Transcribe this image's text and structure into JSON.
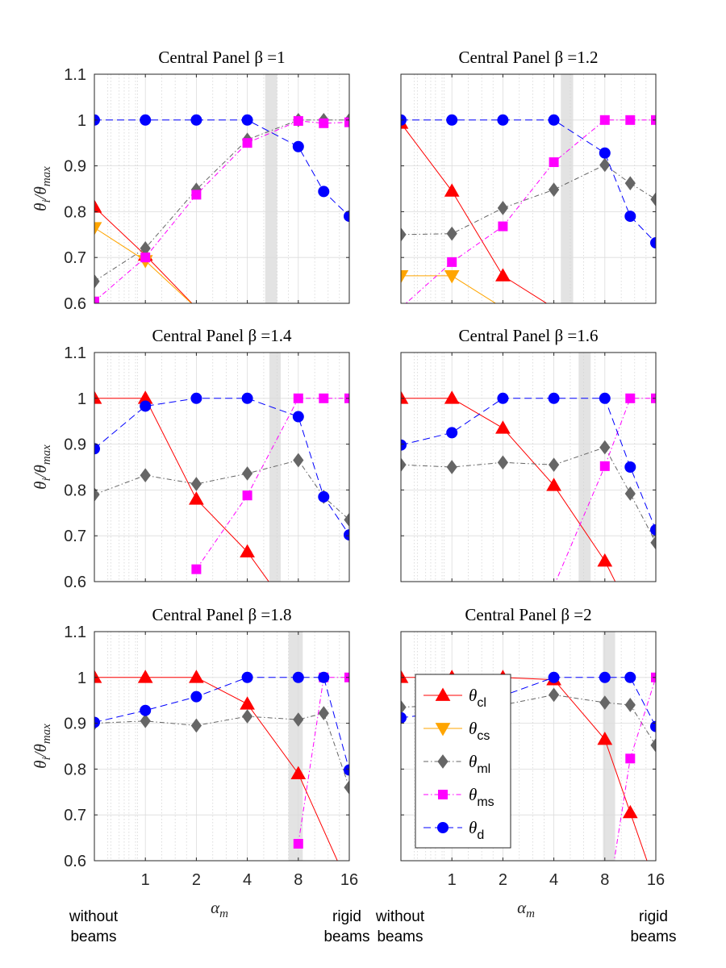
{
  "figure": {
    "xlabel_main": "α",
    "xlabel_sub": "m",
    "ylabel_main": "θ",
    "ylabel_sub": "i",
    "ylabel_slash": "/θ",
    "ylabel_sub2": "max",
    "left_note": [
      "without",
      "beams"
    ],
    "right_note": [
      "rigid",
      "beams"
    ]
  },
  "chart_data": [
    {
      "type": "line",
      "title": "Central Panel β =1",
      "x_scale": "log2",
      "xticks": [
        1,
        2,
        4,
        8,
        16
      ],
      "x_without_beams": 0.5,
      "ylim": [
        0.6,
        1.1
      ],
      "yticks": [
        0.6,
        0.7,
        0.8,
        0.9,
        1,
        1.1
      ],
      "shaded_band": [
        5.1,
        6.0
      ],
      "series": [
        {
          "name": "θcl",
          "x": [
            0.5,
            1,
            2
          ],
          "y": [
            0.81,
            0.705,
            0.59
          ]
        },
        {
          "name": "θcs",
          "x": [
            0.5,
            1,
            2
          ],
          "y": [
            0.765,
            0.693,
            0.59
          ]
        },
        {
          "name": "θml",
          "x": [
            0.5,
            1,
            2,
            4,
            8,
            11.3,
            16
          ],
          "y": [
            0.648,
            0.72,
            0.848,
            0.957,
            1.0,
            1.0,
            1.0
          ]
        },
        {
          "name": "θms",
          "x": [
            0.5,
            1,
            2,
            4,
            8,
            11.3,
            16
          ],
          "y": [
            0.604,
            0.7,
            0.837,
            0.95,
            0.998,
            0.993,
            0.995
          ]
        },
        {
          "name": "θd",
          "x": [
            0.5,
            1,
            2,
            4,
            8,
            11.3,
            16
          ],
          "y": [
            1.0,
            1.0,
            1.0,
            1.0,
            0.942,
            0.844,
            0.79
          ]
        }
      ]
    },
    {
      "type": "line",
      "title": "Central Panel β =1.2",
      "x_scale": "log2",
      "xticks": [
        1,
        2,
        4,
        8,
        16
      ],
      "x_without_beams": 0.5,
      "ylim": [
        0.6,
        1.1
      ],
      "yticks": [
        0.6,
        0.7,
        0.8,
        0.9,
        1,
        1.1
      ],
      "shaded_band": [
        4.4,
        5.2
      ],
      "series": [
        {
          "name": "θcl",
          "x": [
            0.5,
            1,
            2,
            4
          ],
          "y": [
            0.993,
            0.845,
            0.66,
            0.59
          ]
        },
        {
          "name": "θcs",
          "x": [
            0.5,
            1,
            2
          ],
          "y": [
            0.66,
            0.66,
            0.59
          ]
        },
        {
          "name": "θml",
          "x": [
            0.5,
            1,
            2,
            4,
            8,
            11.3,
            16
          ],
          "y": [
            0.75,
            0.752,
            0.808,
            0.848,
            0.902,
            0.862,
            0.827
          ]
        },
        {
          "name": "θms",
          "x": [
            0.5,
            1,
            2,
            4,
            8,
            11.3,
            16
          ],
          "y": [
            0.59,
            0.69,
            0.768,
            0.908,
            1.0,
            1.0,
            1.0
          ]
        },
        {
          "name": "θd",
          "x": [
            0.5,
            1,
            2,
            4,
            8,
            11.3,
            16
          ],
          "y": [
            1.0,
            1.0,
            1.0,
            1.0,
            0.928,
            0.79,
            0.732
          ]
        }
      ]
    },
    {
      "type": "line",
      "title": "Central Panel β =1.4",
      "x_scale": "log2",
      "xticks": [
        1,
        2,
        4,
        8,
        16
      ],
      "x_without_beams": 0.5,
      "ylim": [
        0.6,
        1.1
      ],
      "yticks": [
        0.6,
        0.7,
        0.8,
        0.9,
        1,
        1.1
      ],
      "shaded_band": [
        5.4,
        6.3
      ],
      "series": [
        {
          "name": "θcl",
          "x": [
            0.5,
            1,
            2,
            4,
            5.6
          ],
          "y": [
            1.0,
            1.0,
            0.78,
            0.665,
            0.59
          ]
        },
        {
          "name": "θml",
          "x": [
            0.5,
            1,
            2,
            4,
            8,
            11.3,
            16
          ],
          "y": [
            0.79,
            0.832,
            0.813,
            0.836,
            0.865,
            0.785,
            0.735
          ]
        },
        {
          "name": "θms",
          "x": [
            2,
            4,
            8,
            11.3,
            16
          ],
          "y": [
            0.627,
            0.788,
            1.0,
            1.0,
            1.0
          ]
        },
        {
          "name": "θd",
          "x": [
            0.5,
            1,
            2,
            4,
            8,
            11.3,
            16
          ],
          "y": [
            0.89,
            0.983,
            1.0,
            1.0,
            0.96,
            0.785,
            0.702
          ]
        }
      ]
    },
    {
      "type": "line",
      "title": "Central Panel β =1.6",
      "x_scale": "log2",
      "xticks": [
        1,
        2,
        4,
        8,
        16
      ],
      "x_without_beams": 0.5,
      "ylim": [
        0.6,
        1.1
      ],
      "yticks": [
        0.6,
        0.7,
        0.8,
        0.9,
        1,
        1.1
      ],
      "shaded_band": [
        5.6,
        6.6
      ],
      "series": [
        {
          "name": "θcl",
          "x": [
            0.5,
            1,
            2,
            4,
            8,
            9.5
          ],
          "y": [
            1.0,
            1.0,
            0.935,
            0.81,
            0.645,
            0.59
          ]
        },
        {
          "name": "θml",
          "x": [
            0.5,
            1,
            2,
            4,
            8,
            11.3,
            16
          ],
          "y": [
            0.855,
            0.85,
            0.86,
            0.855,
            0.893,
            0.792,
            0.685
          ]
        },
        {
          "name": "θms",
          "x": [
            4,
            8,
            11.3,
            16
          ],
          "y": [
            0.59,
            0.852,
            1.0,
            1.0
          ]
        },
        {
          "name": "θd",
          "x": [
            0.5,
            1,
            2,
            4,
            8,
            11.3,
            16
          ],
          "y": [
            0.898,
            0.925,
            1.0,
            1.0,
            1.0,
            0.85,
            0.713
          ]
        }
      ]
    },
    {
      "type": "line",
      "title": "Central Panel β =1.8",
      "x_scale": "log2",
      "xticks": [
        1,
        2,
        4,
        8,
        16
      ],
      "x_without_beams": 0.5,
      "ylim": [
        0.6,
        1.1
      ],
      "yticks": [
        0.6,
        0.7,
        0.8,
        0.9,
        1,
        1.1
      ],
      "shaded_band": [
        7.0,
        8.5
      ],
      "series": [
        {
          "name": "θcl",
          "x": [
            0.5,
            1,
            2,
            4,
            8,
            14
          ],
          "y": [
            1.0,
            1.0,
            1.0,
            0.942,
            0.79,
            0.59
          ]
        },
        {
          "name": "θml",
          "x": [
            0.5,
            1,
            2,
            4,
            8,
            11.3,
            16
          ],
          "y": [
            0.9,
            0.905,
            0.895,
            0.915,
            0.908,
            0.922,
            0.76
          ]
        },
        {
          "name": "θms",
          "x": [
            8,
            11.3,
            16
          ],
          "y": [
            0.637,
            1.0,
            1.0
          ]
        },
        {
          "name": "θd",
          "x": [
            0.5,
            1,
            2,
            4,
            8,
            11.3,
            16
          ],
          "y": [
            0.902,
            0.928,
            0.958,
            1.0,
            1.0,
            1.0,
            0.798
          ]
        }
      ]
    },
    {
      "type": "line",
      "title": "Central Panel β =2",
      "x_scale": "log2",
      "xticks": [
        1,
        2,
        4,
        8,
        16
      ],
      "x_without_beams": 0.5,
      "ylim": [
        0.6,
        1.1
      ],
      "yticks": [
        0.6,
        0.7,
        0.8,
        0.9,
        1,
        1.1
      ],
      "shaded_band": [
        7.8,
        9.2
      ],
      "legend": "upper-left inside",
      "series": [
        {
          "name": "θcl",
          "x": [
            0.5,
            1,
            2,
            4,
            8,
            11.3,
            14.5
          ],
          "y": [
            1.0,
            1.0,
            1.0,
            0.995,
            0.865,
            0.705,
            0.59
          ]
        },
        {
          "name": "θml",
          "x": [
            0.5,
            1,
            2,
            4,
            8,
            11.3,
            16
          ],
          "y": [
            0.935,
            0.94,
            0.94,
            0.962,
            0.945,
            0.94,
            0.852
          ]
        },
        {
          "name": "θms",
          "x": [
            9,
            11.3,
            16
          ],
          "y": [
            0.59,
            0.823,
            1.0
          ]
        },
        {
          "name": "θd",
          "x": [
            0.5,
            1,
            2,
            4,
            8,
            11.3,
            16
          ],
          "y": [
            0.912,
            0.925,
            0.96,
            1.0,
            1.0,
            1.0,
            0.893
          ]
        }
      ]
    }
  ],
  "legend": {
    "entries": [
      {
        "key": "θcl",
        "main": "θ",
        "sub": "cl"
      },
      {
        "key": "θcs",
        "main": "θ",
        "sub": "cs"
      },
      {
        "key": "θml",
        "main": "θ",
        "sub": "ml"
      },
      {
        "key": "θms",
        "main": "θ",
        "sub": "ms"
      },
      {
        "key": "θd",
        "main": "θ",
        "sub": "d"
      }
    ]
  },
  "styles": {
    "θcl": {
      "color": "#ff0000",
      "dash": "",
      "marker": "triangle-up"
    },
    "θcs": {
      "color": "#ffa500",
      "dash": "",
      "marker": "triangle-down"
    },
    "θml": {
      "color": "#666666",
      "dash": "6 3 1.5 3",
      "marker": "diamond"
    },
    "θms": {
      "color": "#ff00ff",
      "dash": "6 3 1.5 3",
      "marker": "square"
    },
    "θd": {
      "color": "#0000ff",
      "dash": "9 5",
      "marker": "circle"
    }
  }
}
